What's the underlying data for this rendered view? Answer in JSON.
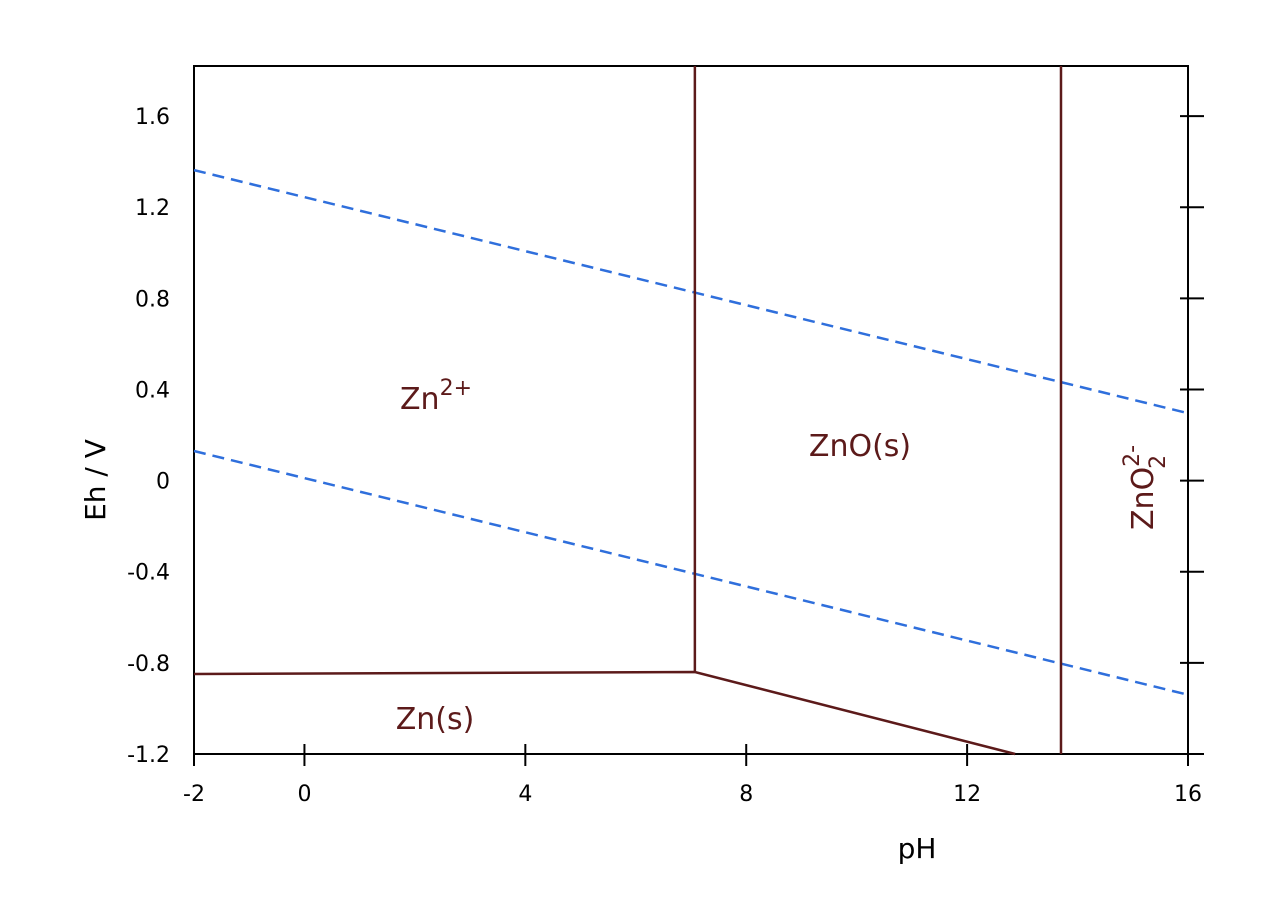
{
  "chart_data": {
    "type": "line",
    "xlabel": "pH",
    "ylabel": "Eh / V",
    "xlim": [
      -2,
      16
    ],
    "xticks": [
      -2,
      0,
      4,
      8,
      12,
      16
    ],
    "ylim": [
      -1.2,
      1.82
    ],
    "yticks": [
      -1.2,
      -0.8,
      -0.4,
      0,
      0.4,
      0.8,
      1.2,
      1.6
    ],
    "series": [
      {
        "color": "#2f6fdc",
        "style": "dashed",
        "x": [
          -2,
          16
        ],
        "values": [
          1.363,
          0.296
        ]
      },
      {
        "color": "#2f6fdc",
        "style": "dashed",
        "x": [
          -2,
          16
        ],
        "values": [
          0.13,
          -0.94
        ]
      },
      {
        "color": "#5c1a1a",
        "style": "solid",
        "x": [
          -2,
          7.07,
          12.87
        ],
        "values": [
          -0.849,
          -0.84,
          -1.2
        ]
      },
      {
        "color": "#5c1a1a",
        "style": "solid",
        "x": [
          7.07,
          7.07
        ],
        "values": [
          -0.84,
          1.82
        ]
      },
      {
        "color": "#5c1a1a",
        "style": "solid",
        "x": [
          13.7,
          13.7
        ],
        "values": [
          -1.2,
          1.82
        ]
      }
    ],
    "annotations": [
      {
        "text": "Zn",
        "sup": "2+"
      },
      {
        "text": "ZnO(s)"
      },
      {
        "text": "Zn(s)"
      },
      {
        "text": "ZnO",
        "sup": "2-",
        "sub": "2"
      }
    ],
    "annotation_color": "#5c1a1a"
  }
}
